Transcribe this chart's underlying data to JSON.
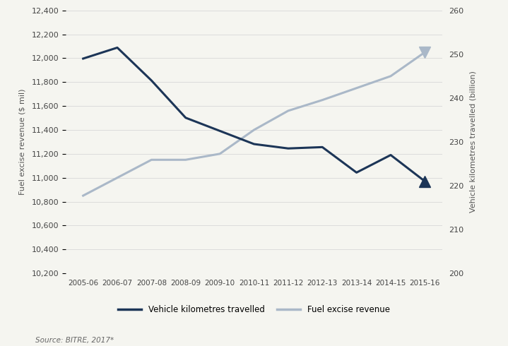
{
  "years": [
    "2005-06",
    "2006-07",
    "2007-08",
    "2008-09",
    "2009-10",
    "2010-11",
    "2011-12",
    "2012-13",
    "2013-14",
    "2014-15",
    "2015-16"
  ],
  "vkt": [
    249.0,
    251.5,
    244.0,
    235.5,
    232.5,
    229.5,
    228.5,
    228.8,
    223.0,
    227.0,
    221.0
  ],
  "fuel_excise": [
    10850,
    11000,
    11150,
    11150,
    11200,
    11400,
    11560,
    11650,
    11750,
    11850,
    12050
  ],
  "vkt_color": "#1c3557",
  "fuel_color": "#aab8c8",
  "right_ylim": [
    200,
    260
  ],
  "left_ylim": [
    10200,
    12400
  ],
  "left_yticks": [
    10200,
    10400,
    10600,
    10800,
    11000,
    11200,
    11400,
    11600,
    11800,
    12000,
    12200,
    12400
  ],
  "right_yticks": [
    200,
    210,
    220,
    230,
    240,
    250,
    260
  ],
  "ylabel_left": "Fuel excise revenue ($ mil)",
  "ylabel_right": "Vehicle kilometres travelled (billion)",
  "source_text": "Source: BITRE, 2017*",
  "legend_vkt": "Vehicle kilometres travelled",
  "legend_fuel": "Fuel excise revenue",
  "background_color": "#f5f5f0",
  "grid_color": "#d8d8d8"
}
